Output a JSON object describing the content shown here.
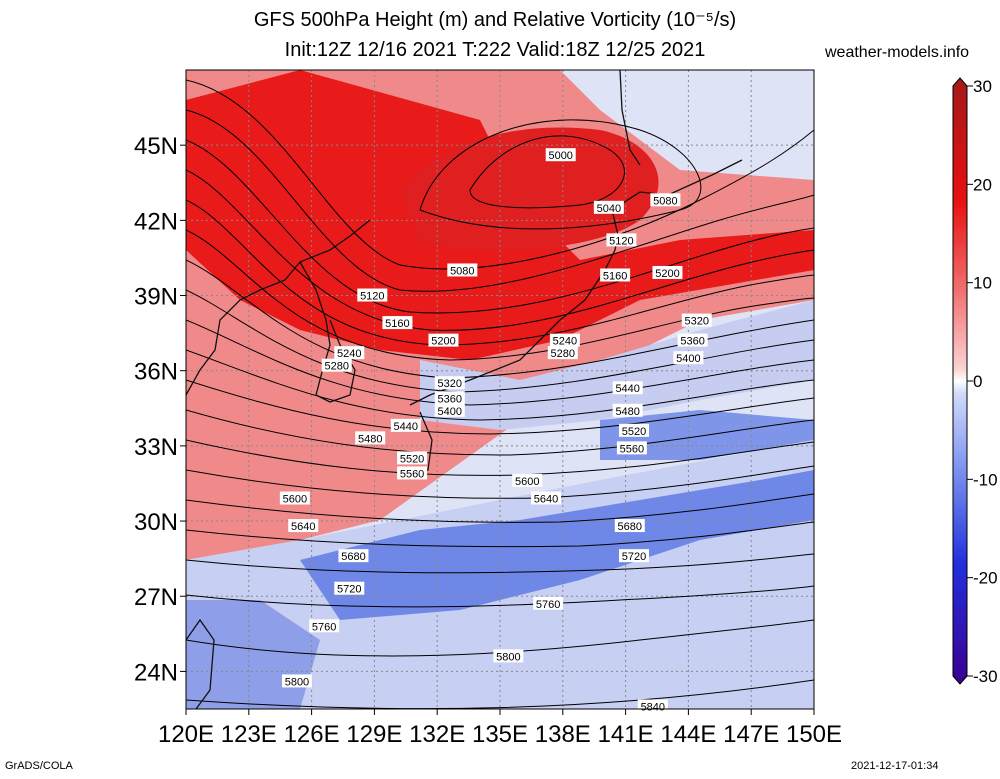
{
  "header": {
    "title_line1": "GFS 500hPa Height (m) and Relative Vorticity (10⁻⁵/s)",
    "title_line2": "Init:12Z 12/16 2021 T:222 Valid:18Z 12/25 2021",
    "credit": "weather-models.info"
  },
  "footer": {
    "left": "GrADS/COLA",
    "right": "2021-12-17-01:34"
  },
  "map": {
    "lon_range": [
      120,
      150
    ],
    "lat_range": [
      22.5,
      48
    ],
    "lon_ticks": [
      "120E",
      "123E",
      "126E",
      "129E",
      "132E",
      "135E",
      "138E",
      "141E",
      "144E",
      "147E",
      "150E"
    ],
    "lat_ticks": [
      "24N",
      "27N",
      "30N",
      "33N",
      "36N",
      "39N",
      "42N",
      "45N"
    ],
    "lat_tick_values": [
      24,
      27,
      30,
      33,
      36,
      39,
      42,
      45
    ],
    "lon_tick_values": [
      120,
      123,
      126,
      129,
      132,
      135,
      138,
      141,
      144,
      147,
      150
    ]
  },
  "colorbar": {
    "range": [
      -30,
      30
    ],
    "labels": [
      "30",
      "20",
      "10",
      "0",
      "-10",
      "-20",
      "-30"
    ],
    "label_values": [
      30,
      20,
      10,
      0,
      -10,
      -20,
      -30
    ],
    "colors": [
      "#3a0090",
      "#2600c8",
      "#2230e0",
      "#4a6ae8",
      "#7a90ee",
      "#a6b6f4",
      "#d2daf9",
      "#ffffff",
      "#fad2d2",
      "#f5a3a3",
      "#f07070",
      "#ec3a3a",
      "#e80f0f",
      "#cc1010",
      "#a31a1a"
    ]
  },
  "contours": [
    {
      "label": "5000",
      "lon": 137.9,
      "lat": 44.6
    },
    {
      "label": "5040",
      "lon": 140.2,
      "lat": 42.5
    },
    {
      "label": "5080",
      "lon": 142.9,
      "lat": 42.8
    },
    {
      "label": "5080",
      "lon": 133.2,
      "lat": 40.0
    },
    {
      "label": "5120",
      "lon": 140.8,
      "lat": 41.2
    },
    {
      "label": "5120",
      "lon": 128.9,
      "lat": 39.0
    },
    {
      "label": "5160",
      "lon": 140.5,
      "lat": 39.8
    },
    {
      "label": "5160",
      "lon": 130.1,
      "lat": 37.9
    },
    {
      "label": "5200",
      "lon": 143.0,
      "lat": 39.9
    },
    {
      "label": "5200",
      "lon": 132.3,
      "lat": 37.2
    },
    {
      "label": "5240",
      "lon": 138.1,
      "lat": 37.2
    },
    {
      "label": "5240",
      "lon": 127.8,
      "lat": 36.7
    },
    {
      "label": "5280",
      "lon": 138.0,
      "lat": 36.7
    },
    {
      "label": "5280",
      "lon": 127.2,
      "lat": 36.2
    },
    {
      "label": "5320",
      "lon": 144.4,
      "lat": 38.0
    },
    {
      "label": "5320",
      "lon": 132.6,
      "lat": 35.5
    },
    {
      "label": "5360",
      "lon": 144.2,
      "lat": 37.2
    },
    {
      "label": "5360",
      "lon": 132.6,
      "lat": 34.9
    },
    {
      "label": "5400",
      "lon": 144.0,
      "lat": 36.5
    },
    {
      "label": "5400",
      "lon": 132.6,
      "lat": 34.4
    },
    {
      "label": "5440",
      "lon": 141.1,
      "lat": 35.3
    },
    {
      "label": "5440",
      "lon": 130.5,
      "lat": 33.8
    },
    {
      "label": "5480",
      "lon": 141.1,
      "lat": 34.4
    },
    {
      "label": "5480",
      "lon": 128.8,
      "lat": 33.3
    },
    {
      "label": "5520",
      "lon": 141.4,
      "lat": 33.6
    },
    {
      "label": "5520",
      "lon": 130.8,
      "lat": 32.5
    },
    {
      "label": "5560",
      "lon": 141.3,
      "lat": 32.9
    },
    {
      "label": "5560",
      "lon": 130.8,
      "lat": 31.9
    },
    {
      "label": "5600",
      "lon": 136.3,
      "lat": 31.6
    },
    {
      "label": "5600",
      "lon": 125.2,
      "lat": 30.9
    },
    {
      "label": "5640",
      "lon": 137.2,
      "lat": 30.9
    },
    {
      "label": "5640",
      "lon": 125.6,
      "lat": 29.8
    },
    {
      "label": "5680",
      "lon": 141.2,
      "lat": 29.8
    },
    {
      "label": "5680",
      "lon": 128.0,
      "lat": 28.6
    },
    {
      "label": "5720",
      "lon": 141.4,
      "lat": 28.6
    },
    {
      "label": "5720",
      "lon": 127.8,
      "lat": 27.3
    },
    {
      "label": "5760",
      "lon": 137.3,
      "lat": 26.7
    },
    {
      "label": "5760",
      "lon": 126.6,
      "lat": 25.8
    },
    {
      "label": "5800",
      "lon": 135.4,
      "lat": 24.6
    },
    {
      "label": "5800",
      "lon": 125.3,
      "lat": 23.6
    },
    {
      "label": "5840",
      "lon": 142.3,
      "lat": 22.6
    }
  ]
}
